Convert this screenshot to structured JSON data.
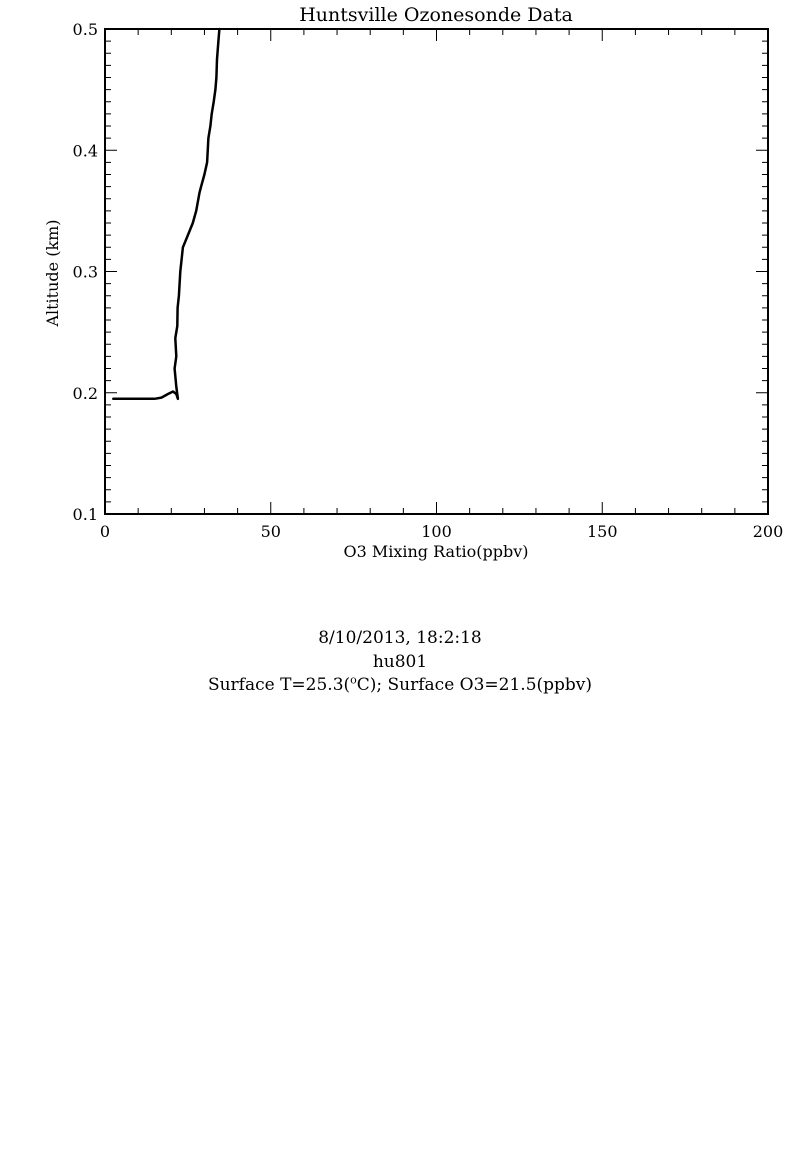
{
  "chart_data": {
    "type": "line",
    "title": "Huntsville Ozonesonde Data",
    "xlabel": "O3 Mixing Ratio(ppbv)",
    "ylabel": "Altitude (km)",
    "xlim": [
      0,
      200
    ],
    "ylim": [
      0.1,
      0.5
    ],
    "x_ticks": [
      "0",
      "50",
      "100",
      "150",
      "200"
    ],
    "y_ticks": [
      "0.1",
      "0.2",
      "0.3",
      "0.4",
      "0.5"
    ],
    "grid": false,
    "series": [
      {
        "x": [
          2.5,
          5,
          10,
          15,
          17,
          19,
          20.5,
          21.5,
          22,
          21.5,
          21,
          21.5,
          21.2,
          21.8,
          21.9,
          22.3,
          22.7,
          23.5,
          25,
          26.5,
          27.5,
          28.5,
          29,
          30,
          30.8,
          31.2,
          31.8,
          32.2,
          32.8,
          33.3,
          33.6,
          33.8,
          34.2,
          34.5
        ],
        "y": [
          0.195,
          0.195,
          0.195,
          0.195,
          0.196,
          0.199,
          0.201,
          0.199,
          0.195,
          0.205,
          0.22,
          0.23,
          0.245,
          0.255,
          0.27,
          0.28,
          0.3,
          0.32,
          0.33,
          0.34,
          0.35,
          0.365,
          0.37,
          0.38,
          0.39,
          0.41,
          0.42,
          0.43,
          0.44,
          0.45,
          0.46,
          0.475,
          0.49,
          0.5
        ]
      }
    ],
    "color": "#000000"
  },
  "footer": {
    "datetime": "8/10/2013, 18:2:18",
    "station": "hu801",
    "surface_t_prefix": "Surface T=25.3(",
    "surface_t_sup": "o",
    "surface_t_suffix": "C); Surface O3=21.5(ppbv)"
  }
}
